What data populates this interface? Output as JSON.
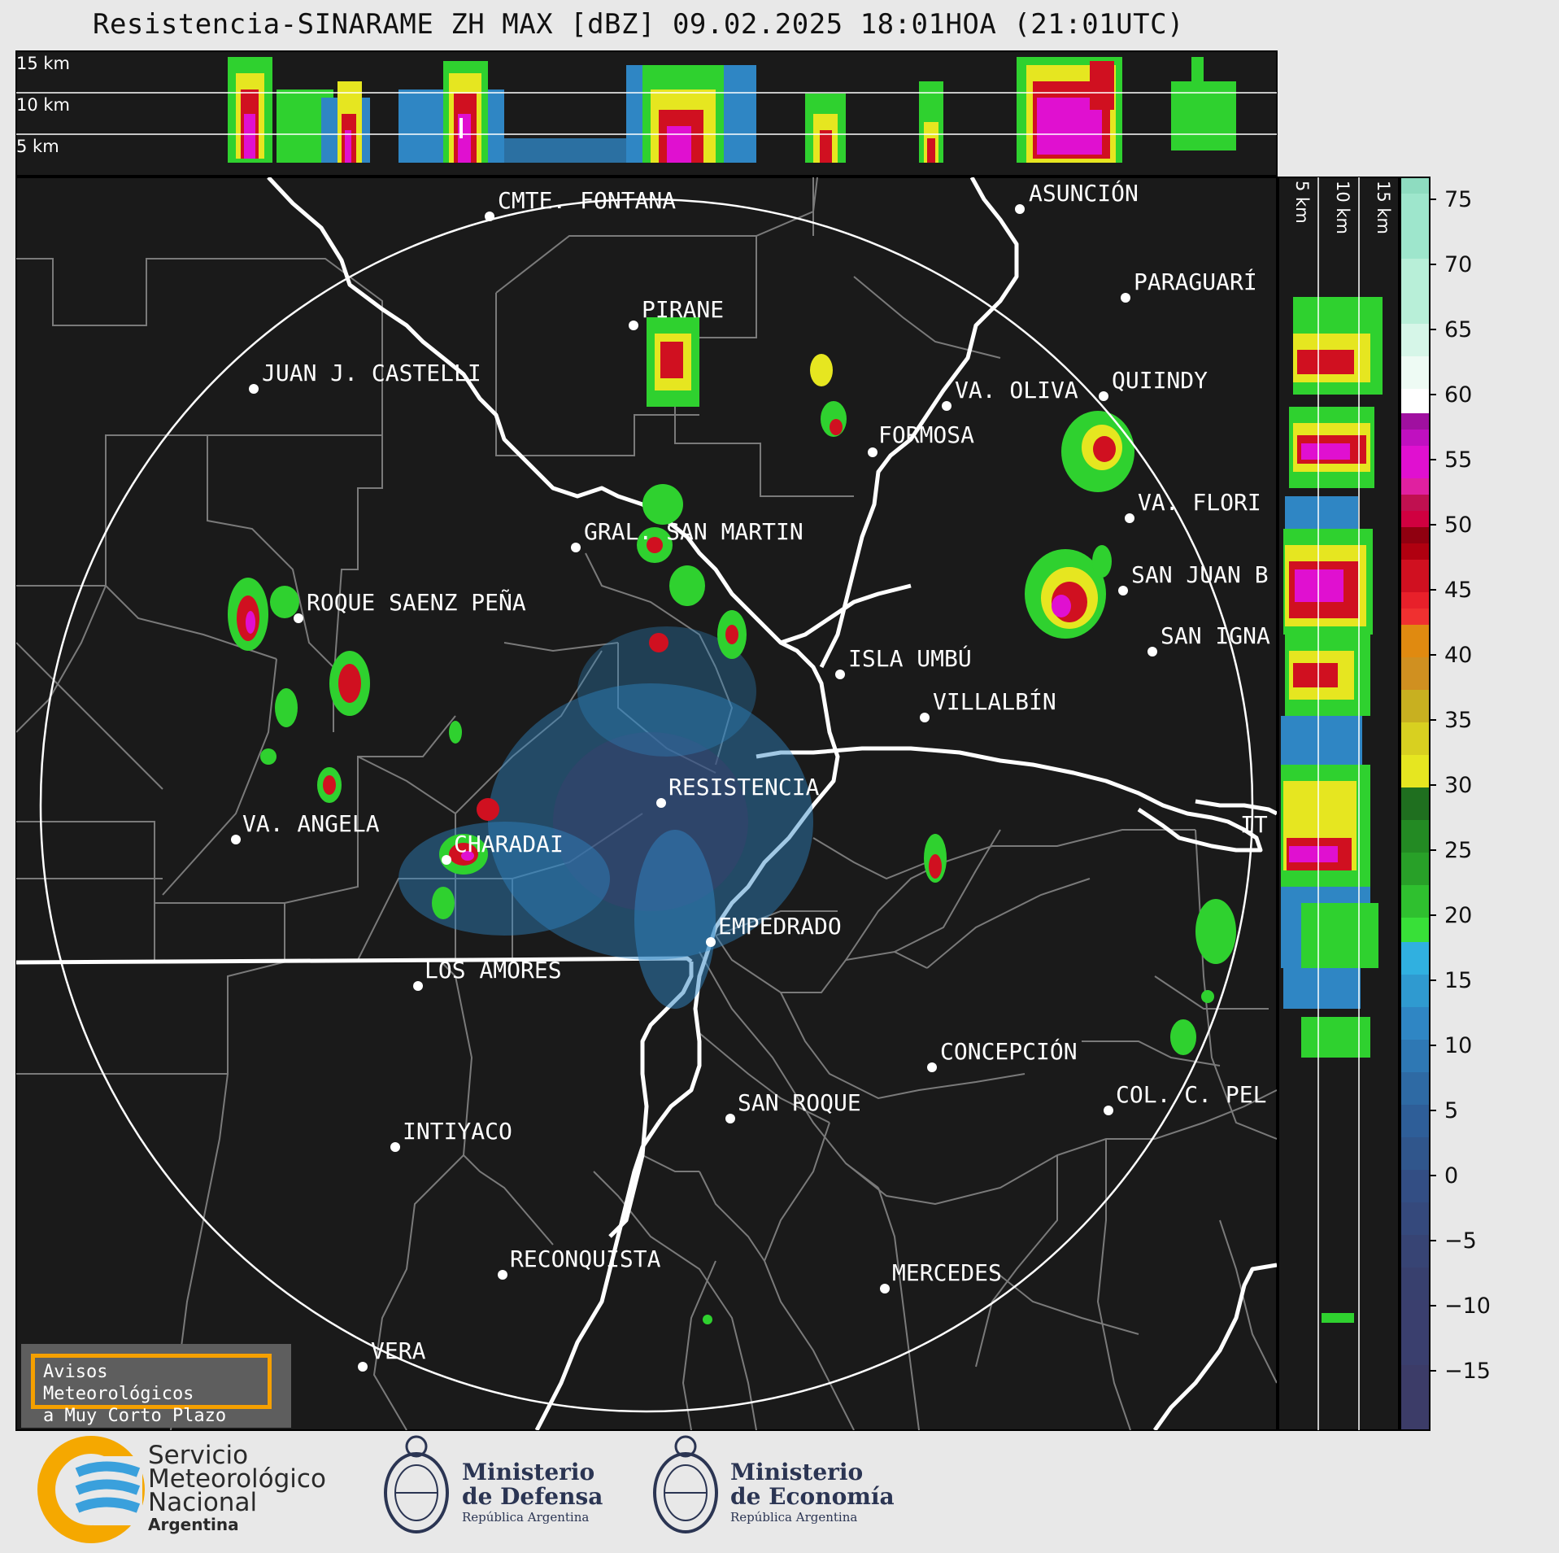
{
  "header": {
    "title": "Resistencia-SINARAME ZH MAX [dBZ] 09.02.2025 18:01HOA (21:01UTC)"
  },
  "top_profile": {
    "height_labels": [
      "15 km",
      "10 km",
      "5 km"
    ]
  },
  "side_profile": {
    "height_labels": [
      "5 km",
      "10 km",
      "15 km"
    ]
  },
  "cities": [
    {
      "name": "CMTE. FONTANA"
    },
    {
      "name": "ASUNCIÓN"
    },
    {
      "name": "PARAGUARÍ"
    },
    {
      "name": "PIRANE"
    },
    {
      "name": "JUAN J. CASTELLI"
    },
    {
      "name": "VA. OLIVA"
    },
    {
      "name": "QUIINDY"
    },
    {
      "name": "FORMOSA"
    },
    {
      "name": "VA. FLORI"
    },
    {
      "name": "GRAL. SAN MARTIN"
    },
    {
      "name": "SAN JUAN B"
    },
    {
      "name": "ROQUE SAENZ PEÑA"
    },
    {
      "name": "SAN IGNA"
    },
    {
      "name": "ISLA UMBÚ"
    },
    {
      "name": "VILLALBÍN"
    },
    {
      "name": "RESISTENCIA"
    },
    {
      "name": "VA. ANGELA"
    },
    {
      "name": "CHARADAI"
    },
    {
      "name": "IT"
    },
    {
      "name": "EMPEDRADO"
    },
    {
      "name": "LOS AMORES"
    },
    {
      "name": "CONCEPCIÓN"
    },
    {
      "name": "SAN ROQUE"
    },
    {
      "name": "COL. C. PEL"
    },
    {
      "name": "INTIYACO"
    },
    {
      "name": "RECONQUISTA"
    },
    {
      "name": "MERCEDES"
    },
    {
      "name": "VERA"
    }
  ],
  "colorbar": {
    "ticks": [
      "75",
      "70",
      "65",
      "60",
      "55",
      "50",
      "45",
      "40",
      "35",
      "30",
      "25",
      "20",
      "15",
      "10",
      "5",
      "0",
      "−5",
      "−10",
      "−15"
    ],
    "colors": {
      "below_0": "#3a3f6e",
      "weak": "#2f86c4",
      "green": "#2fd12f",
      "yellow": "#e6e620",
      "orange": "#e08a10",
      "red": "#d01020",
      "magenta": "#e010d0",
      "white": "#ffffff",
      "teal": "#8edcc0"
    }
  },
  "warning_box": {
    "line1": "Avisos Meteorológicos",
    "line2": "a Muy Corto Plazo"
  },
  "footer": {
    "smn": {
      "line1": "Servicio",
      "line2": "Meteorológico",
      "line3": "Nacional",
      "line4": "Argentina"
    },
    "defensa": {
      "line1": "Ministerio",
      "line2": "de Defensa",
      "line3": "República Argentina"
    },
    "economia": {
      "line1": "Ministerio",
      "line2": "de Economía",
      "line3": "República Argentina"
    }
  }
}
